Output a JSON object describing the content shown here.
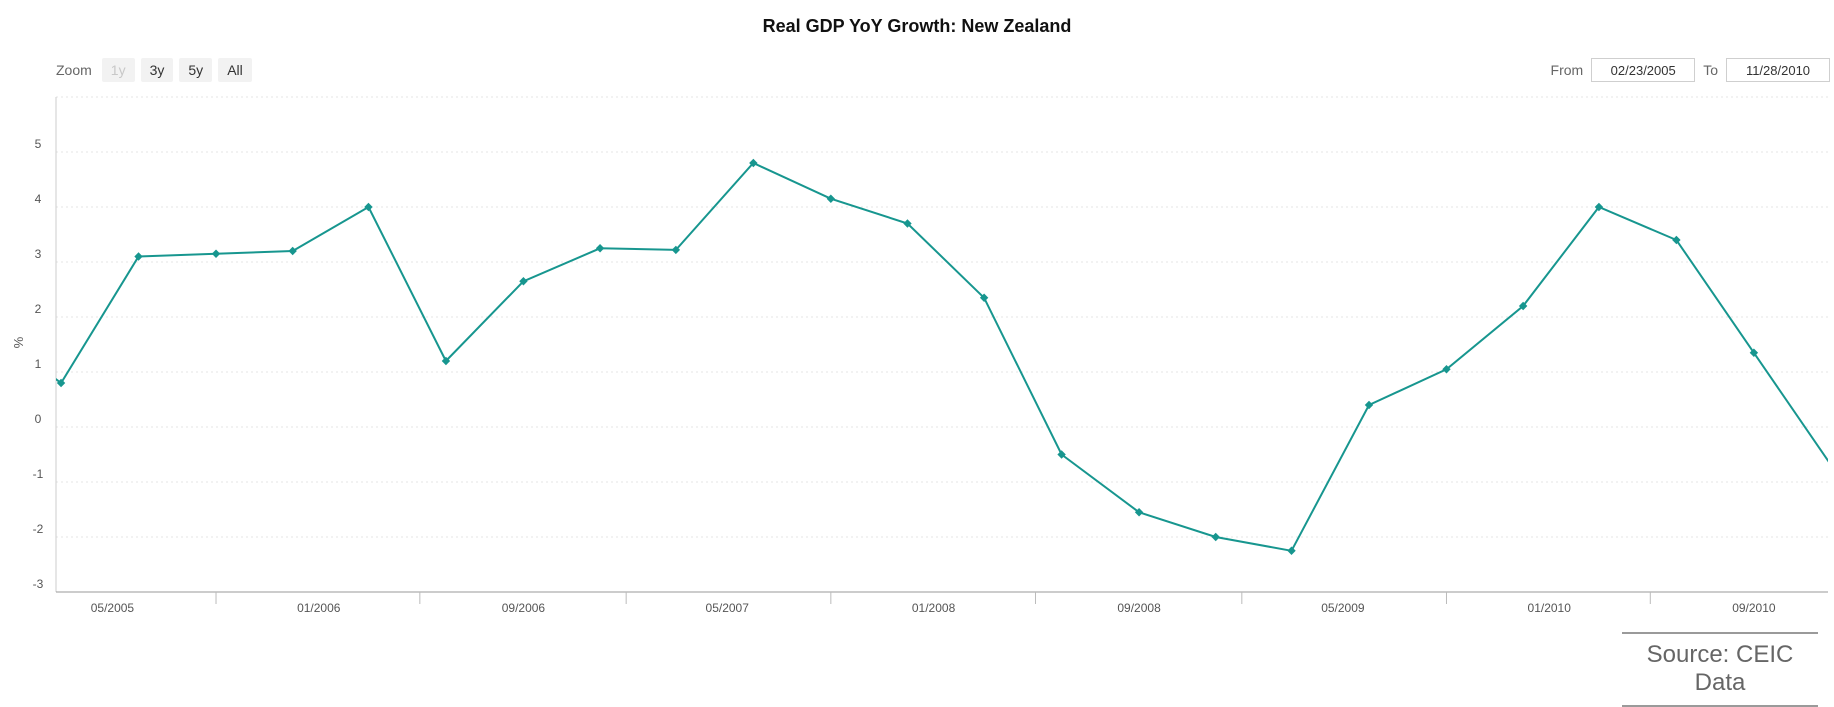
{
  "toolbar": {
    "zoom_label": "Zoom",
    "zoom_buttons": [
      "1y",
      "3y",
      "5y",
      "All"
    ],
    "from_label": "From",
    "from_value": "02/23/2005",
    "to_label": "To",
    "to_value": "11/28/2010"
  },
  "source": "Source: CEIC Data",
  "colors": {
    "line": "#17968f",
    "grid": "#e6e6e6",
    "axis": "#cccccc"
  },
  "chart_data": {
    "type": "line",
    "title": "Real GDP YoY Growth: New Zealand",
    "ylabel": "%",
    "xlabel": "",
    "xrange": [
      "2005-02-23",
      "2010-11-28"
    ],
    "ylim": [
      -3,
      6
    ],
    "yticks": [
      -3,
      -2,
      -1,
      0,
      1,
      2,
      3,
      4,
      5
    ],
    "xticks": [
      {
        "label": "05/2005",
        "date": "2005-05-01"
      },
      {
        "label": "01/2006",
        "date": "2006-01-01"
      },
      {
        "label": "09/2006",
        "date": "2006-09-01"
      },
      {
        "label": "05/2007",
        "date": "2007-05-01"
      },
      {
        "label": "01/2008",
        "date": "2008-01-01"
      },
      {
        "label": "09/2008",
        "date": "2008-09-01"
      },
      {
        "label": "05/2009",
        "date": "2009-05-01"
      },
      {
        "label": "01/2010",
        "date": "2010-01-01"
      },
      {
        "label": "09/2010",
        "date": "2010-09-01"
      }
    ],
    "minor_ticks": [
      "2005-09-01",
      "2006-05-01",
      "2007-01-01",
      "2007-09-01",
      "2008-05-01",
      "2009-01-01",
      "2009-09-01",
      "2010-05-01"
    ],
    "grid": true,
    "legend": "none",
    "series": [
      {
        "x": [
          "2005-03-01",
          "2005-06-01",
          "2005-09-01",
          "2005-12-01",
          "2006-03-01",
          "2006-06-01",
          "2006-09-01",
          "2006-12-01",
          "2007-03-01",
          "2007-06-01",
          "2007-09-01",
          "2007-12-01",
          "2008-03-01",
          "2008-06-01",
          "2008-09-01",
          "2008-12-01",
          "2009-03-01",
          "2009-06-01",
          "2009-09-01",
          "2009-12-01",
          "2010-03-01",
          "2010-06-01",
          "2010-09-01"
        ],
        "values": [
          0.8,
          3.1,
          3.15,
          3.2,
          4.0,
          1.2,
          2.65,
          3.25,
          3.22,
          4.8,
          4.15,
          3.7,
          2.35,
          -0.5,
          -1.55,
          -2.0,
          -2.25,
          0.4,
          1.05,
          2.2,
          4.0,
          3.4,
          1.35
        ]
      }
    ]
  }
}
